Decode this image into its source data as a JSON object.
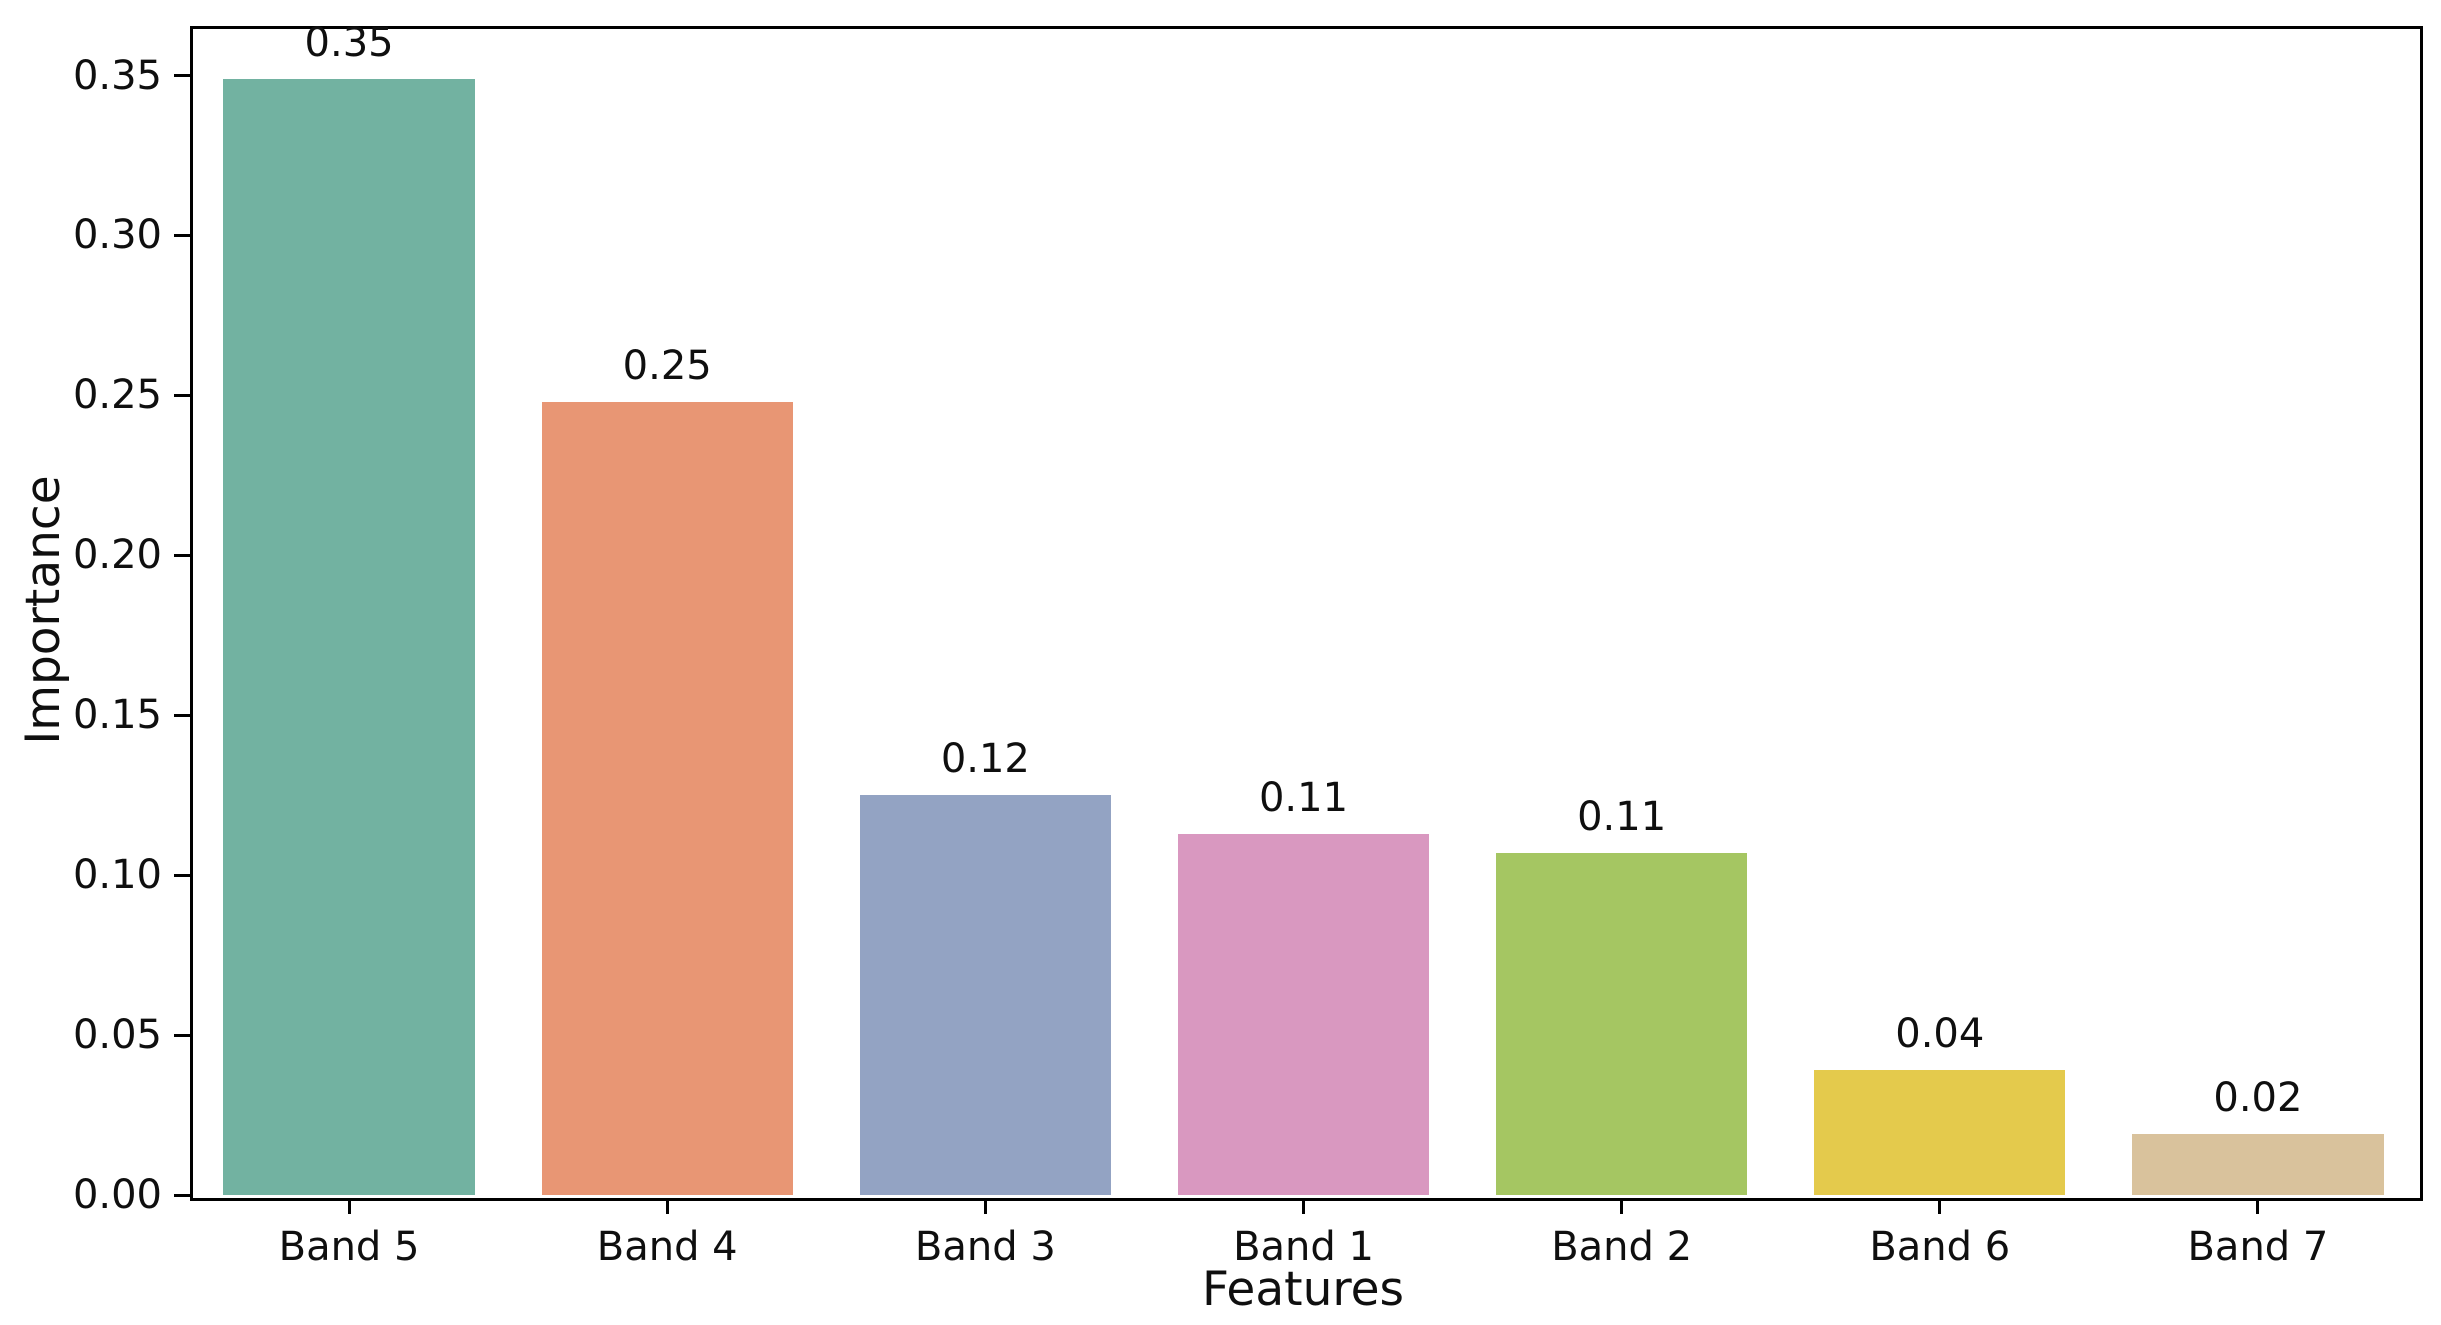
{
  "figure": {
    "background": "#ffffff",
    "spine_color": "#000000",
    "text_color": "#0f0f0f"
  },
  "chart_data": {
    "type": "bar",
    "title": "",
    "xlabel": "Features",
    "ylabel": "Importance",
    "categories": [
      "Band 5",
      "Band 4",
      "Band 3",
      "Band 1",
      "Band 2",
      "Band 6",
      "Band 7"
    ],
    "values": [
      0.349,
      0.248,
      0.125,
      0.113,
      0.107,
      0.039,
      0.019
    ],
    "bar_labels": [
      "0.35",
      "0.25",
      "0.12",
      "0.11",
      "0.11",
      "0.04",
      "0.02"
    ],
    "bar_colors": [
      "#72b2a1",
      "#e89674",
      "#93a3c3",
      "#d998c0",
      "#a5c662",
      "#e4ca4c",
      "#d9c29c"
    ],
    "yticks": [
      0.0,
      0.05,
      0.1,
      0.15,
      0.2,
      0.25,
      0.3,
      0.35
    ],
    "ytick_labels": [
      "0.00",
      "0.05",
      "0.10",
      "0.15",
      "0.20",
      "0.25",
      "0.30",
      "0.35"
    ],
    "ylim": [
      0,
      0.3655
    ],
    "bar_width_fraction": 0.79,
    "grid": false,
    "legend_position": "none"
  }
}
